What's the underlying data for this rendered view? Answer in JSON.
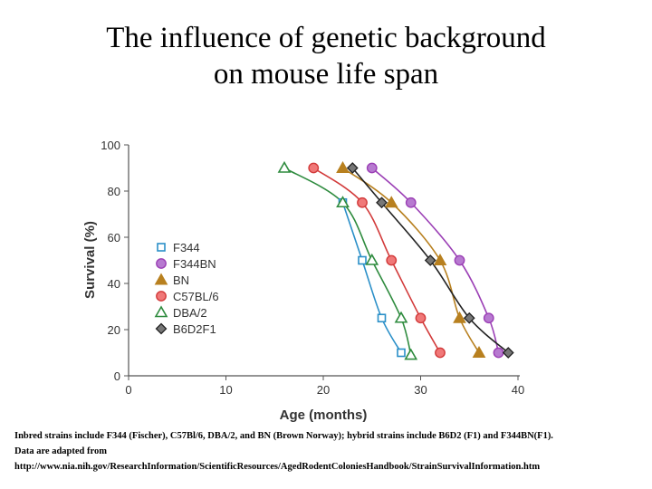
{
  "title": {
    "line1": "The influence of genetic background",
    "line2": "on mouse life span"
  },
  "caption": {
    "line1": "Inbred strains include F344 (Fischer), C57Bl/6, DBA/2, and BN (Brown Norway); hybrid strains include B6D2 (F1) and F344BN(F1).",
    "line2": "Data are adapted from",
    "line3": "http://www.nia.nih.gov/ResearchInformation/ScientificResources/AgedRodentColoniesHandbook/StrainSurvivalInformation.htm"
  },
  "chart_data": {
    "type": "line",
    "xlabel": "Age (months)",
    "ylabel": "Survival (%)",
    "xlim": [
      0,
      40
    ],
    "ylim": [
      0,
      100
    ],
    "xticks": [
      0,
      10,
      20,
      30,
      40
    ],
    "yticks": [
      0,
      20,
      40,
      60,
      80,
      100
    ],
    "grid": false,
    "legend_position": "left-center",
    "series": [
      {
        "name": "F344",
        "marker": "square-open",
        "color": "#2a8fc8",
        "points": [
          [
            22,
            75
          ],
          [
            24,
            50
          ],
          [
            26,
            25
          ],
          [
            28,
            10
          ]
        ]
      },
      {
        "name": "F344BN",
        "marker": "circle-filled",
        "color": "#9b3fb5",
        "fill": "#b77ad0",
        "points": [
          [
            25,
            90
          ],
          [
            29,
            75
          ],
          [
            34,
            50
          ],
          [
            37,
            25
          ],
          [
            38,
            10
          ]
        ]
      },
      {
        "name": "BN",
        "marker": "triangle-filled",
        "color": "#b8801f",
        "fill": "#b8801f",
        "points": [
          [
            22,
            90
          ],
          [
            27,
            75
          ],
          [
            32,
            50
          ],
          [
            34,
            25
          ],
          [
            36,
            10
          ]
        ]
      },
      {
        "name": "C57BL/6",
        "marker": "circle-filled",
        "color": "#d23a3a",
        "fill": "#f07878",
        "points": [
          [
            19,
            90
          ],
          [
            24,
            75
          ],
          [
            27,
            50
          ],
          [
            30,
            25
          ],
          [
            32,
            10
          ]
        ]
      },
      {
        "name": "DBA/2",
        "marker": "triangle-open",
        "color": "#2e8b3e",
        "points": [
          [
            16,
            90
          ],
          [
            22,
            75
          ],
          [
            25,
            50
          ],
          [
            28,
            25
          ],
          [
            29,
            9
          ]
        ]
      },
      {
        "name": "B6D2F1",
        "marker": "diamond-filled",
        "color": "#222222",
        "fill": "#777777",
        "points": [
          [
            23,
            90
          ],
          [
            26,
            75
          ],
          [
            31,
            50
          ],
          [
            35,
            25
          ],
          [
            39,
            10
          ]
        ]
      }
    ]
  }
}
